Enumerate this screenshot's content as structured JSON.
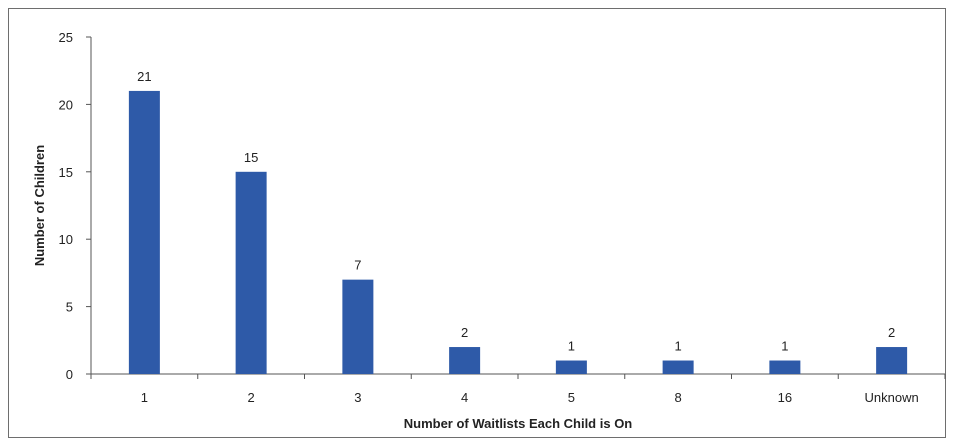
{
  "chart_data": {
    "type": "bar",
    "categories": [
      "1",
      "2",
      "3",
      "4",
      "5",
      "8",
      "16",
      "Unknown"
    ],
    "values": [
      21,
      15,
      7,
      2,
      1,
      1,
      1,
      2
    ],
    "data_labels": [
      "21",
      "15",
      "7",
      "2",
      "1",
      "1",
      "1",
      "2"
    ],
    "xlabel": "Number of Waitlists Each Child is On",
    "ylabel": "Number of Children",
    "ylim": [
      0,
      25
    ],
    "yticks": [
      "0",
      "5",
      "10",
      "15",
      "20",
      "25"
    ],
    "ytick_values": [
      0,
      5,
      10,
      15,
      20,
      25
    ],
    "bar_color": "#2e5aa8",
    "grid": false,
    "legend": "none"
  }
}
